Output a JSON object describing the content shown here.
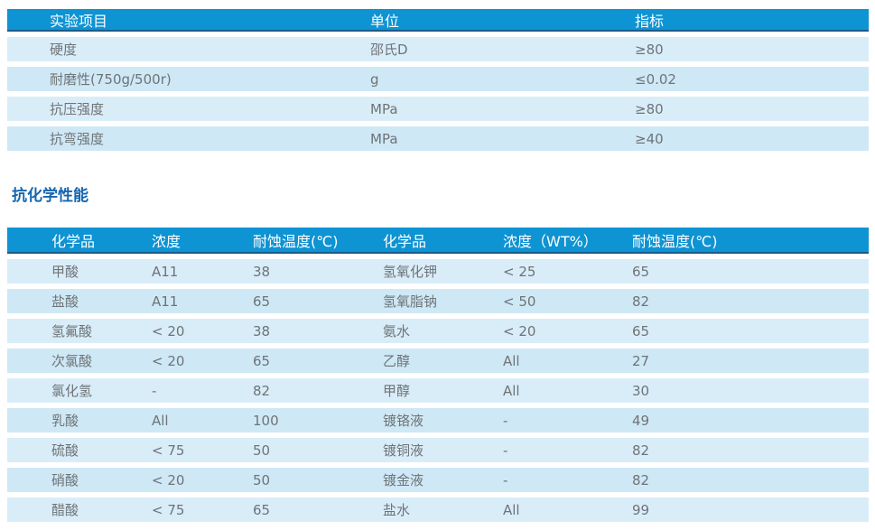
{
  "colors": {
    "page_bg": "#ffffff",
    "header_bg": "#0e93d3",
    "header_text": "#ffffff",
    "header_border": "#1b5a8a",
    "row_bg_light": "#d9edf9",
    "row_bg_alt": "#cfe8f6",
    "cell_text": "#6e7477",
    "title_text": "#1566b0"
  },
  "section_title": "抗化学性能",
  "table1": {
    "columns": [
      "实验项目",
      "单位",
      "指标"
    ],
    "rows": [
      [
        "硬度",
        "邵氏D",
        "≥80"
      ],
      [
        "耐磨性(750g/500r)",
        "g",
        "≤0.02"
      ],
      [
        "抗压强度",
        "MPa",
        "≥80"
      ],
      [
        "抗弯强度",
        "MPa",
        "≥40"
      ]
    ]
  },
  "table2": {
    "columns": [
      "化学品",
      "浓度",
      "耐蚀温度(℃)",
      "化学品",
      "浓度（WT%）",
      "耐蚀温度(℃)"
    ],
    "rows": [
      [
        "甲酸",
        "A11",
        "38",
        "氢氧化钾",
        "< 25",
        "65"
      ],
      [
        "盐酸",
        "A11",
        "65",
        "氢氧脂钠",
        "< 50",
        "82"
      ],
      [
        "氢氟酸",
        "< 20",
        "38",
        "氨水",
        "< 20",
        "65"
      ],
      [
        "次氯酸",
        "< 20",
        "65",
        "乙醇",
        "All",
        "27"
      ],
      [
        "氯化氢",
        "-",
        "82",
        "甲醇",
        "All",
        "30"
      ],
      [
        "乳酸",
        "All",
        "100",
        "镀铬液",
        "-",
        "49"
      ],
      [
        "硫酸",
        "< 75",
        "50",
        "镀铜液",
        "-",
        "82"
      ],
      [
        "硝酸",
        "< 20",
        "50",
        "镀金液",
        "-",
        "82"
      ],
      [
        "醋酸",
        "< 75",
        "65",
        "盐水",
        "All",
        "99"
      ]
    ]
  }
}
